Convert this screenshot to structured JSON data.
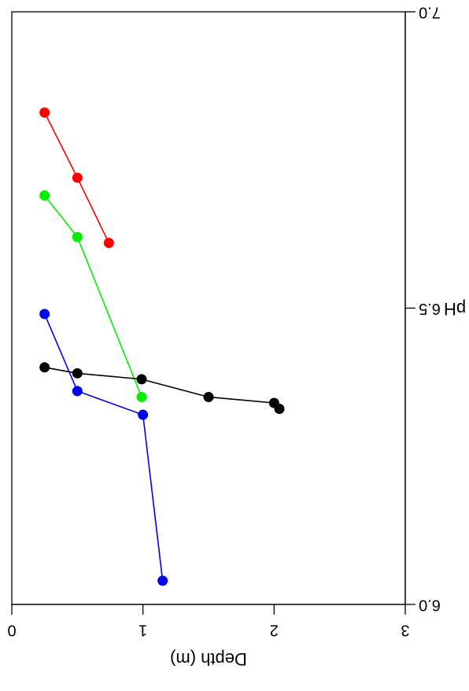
{
  "chart_data": {
    "type": "line",
    "xlabel": "pH",
    "ylabel": "Depth (m)",
    "xlim": [
      6.0,
      7.0
    ],
    "ylim": [
      0,
      3
    ],
    "x_ticks": [
      "6.0",
      "6.5",
      "7.0"
    ],
    "y_ticks": [
      "0",
      "1",
      "2",
      "3"
    ],
    "grid": false,
    "orientation": "rotated-180",
    "series": [
      {
        "color": "#ff0000",
        "points": [
          {
            "x": 6.83,
            "y": 0.25
          },
          {
            "x": 6.72,
            "y": 0.5
          },
          {
            "x": 6.61,
            "y": 0.74
          }
        ]
      },
      {
        "color": "#00ee00",
        "points": [
          {
            "x": 6.69,
            "y": 0.25
          },
          {
            "x": 6.62,
            "y": 0.5
          },
          {
            "x": 6.35,
            "y": 0.99
          }
        ]
      },
      {
        "color": "#0000ee",
        "points": [
          {
            "x": 6.49,
            "y": 0.25
          },
          {
            "x": 6.36,
            "y": 0.5
          },
          {
            "x": 6.32,
            "y": 1.0
          },
          {
            "x": 6.04,
            "y": 1.15
          }
        ]
      },
      {
        "color": "#000000",
        "points": [
          {
            "x": 6.4,
            "y": 0.25
          },
          {
            "x": 6.39,
            "y": 0.5
          },
          {
            "x": 6.38,
            "y": 0.99
          },
          {
            "x": 6.35,
            "y": 1.5
          },
          {
            "x": 6.34,
            "y": 2.0
          },
          {
            "x": 6.33,
            "y": 2.04
          }
        ]
      }
    ]
  }
}
